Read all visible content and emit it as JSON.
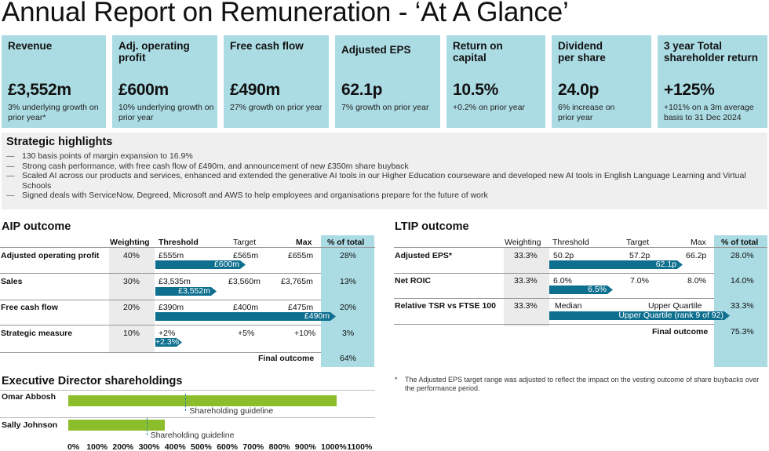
{
  "title": "Annual Report on Remuneration - ‘At A Glance’",
  "kpis": [
    {
      "label": "Revenue",
      "value": "£3,552m",
      "sub": "3% underlying growth on prior year*"
    },
    {
      "label": "Adj. operating profit",
      "value": "£600m",
      "sub": "10% underlying growth on prior year"
    },
    {
      "label": "Free cash flow",
      "value": "£490m",
      "sub": "27% growth on prior year"
    },
    {
      "label": "Adjusted EPS",
      "value": "62.1p",
      "sub": "7% growth on prior year"
    },
    {
      "label": "Return on capital",
      "value": "10.5%",
      "sub": "+0.2% on prior year"
    },
    {
      "label": "Dividend per share",
      "value": "24.0p",
      "sub": "6% increase on prior year"
    },
    {
      "label": "3 year Total shareholder return",
      "value": "+125%",
      "sub": "+101% on a 3m average basis to 31 Dec 2024"
    }
  ],
  "highlights": {
    "title": "Strategic highlights",
    "items": [
      "130 basis points of margin expansion to 16.9%",
      "Strong cash performance, with free cash flow of £490m, and announcement of new £350m share buyback",
      "Scaled AI across our products and services, enhanced and extended the generative AI tools in our Higher Education courseware and developed new AI tools in English Language Learning and Virtual Schools",
      "Signed deals with ServiceNow, Degreed, Microsoft and AWS to help employees and organisations prepare for the future of work"
    ]
  },
  "aip": {
    "title": "AIP outcome",
    "headers": {
      "weighting": "Weighting",
      "threshold": "Threshold",
      "target": "Target",
      "max": "Max",
      "pct": "% of total"
    },
    "rows": [
      {
        "label": "Adjusted operating profit",
        "weighting": "40%",
        "threshold": "£555m",
        "target": "£565m",
        "max": "£655m",
        "pct": "28%",
        "bar": "£600m",
        "fill": 0.5
      },
      {
        "label": "Sales",
        "weighting": "30%",
        "threshold": "£3,535m",
        "target": "£3,560m",
        "max": "£3,765m",
        "pct": "13%",
        "bar": "£3,552m",
        "fill": 0.34
      },
      {
        "label": "Free cash flow",
        "weighting": "20%",
        "threshold": "£390m",
        "target": "£400m",
        "max": "£475m",
        "pct": "20%",
        "bar": "£490m",
        "fill": 1.0
      },
      {
        "label": "Strategic measure",
        "weighting": "10%",
        "threshold": "+2%",
        "target": "+5%",
        "max": "+10%",
        "pct": "3%",
        "bar": "+2.3%",
        "fill": 0.14
      }
    ],
    "final_label": "Final outcome",
    "final_value": "64%"
  },
  "ltip": {
    "title": "LTIP outcome",
    "headers": {
      "weighting": "Weighting",
      "threshold": "Threshold",
      "target": "Target",
      "max": "Max",
      "pct": "% of total"
    },
    "rows": [
      {
        "label": "Adjusted EPS*",
        "weighting": "33.3%",
        "threshold": "50.2p",
        "target": "57.2p",
        "max": "66.2p",
        "pct": "28.0%",
        "bar": "62.1p",
        "fill": 0.74
      },
      {
        "label": "Net ROIC",
        "weighting": "33.3%",
        "threshold": "6.0%",
        "target": "7.0%",
        "max": "8.0%",
        "pct": "14.0%",
        "bar": "6.5%",
        "fill": 0.35
      },
      {
        "label": "Relative TSR vs FTSE 100",
        "weighting": "33.3%",
        "threshold": "Median",
        "target": "Upper Quartile",
        "max": "",
        "pct": "33.3%",
        "bar": "Upper Quartile (rank 9 of 92)",
        "fill": 1.0
      }
    ],
    "final_label": "Final outcome",
    "final_value": "75.3%"
  },
  "shareholdings": {
    "title": "Executive Director shareholdings",
    "people": [
      {
        "name": "Omar Abbosh",
        "holding_pct": 1030,
        "guideline_pct": 450,
        "guideline_label": "Shareholding guideline"
      },
      {
        "name": "Sally Johnson",
        "holding_pct": 370,
        "guideline_pct": 300,
        "guideline_label": "Shareholding guideline"
      }
    ],
    "axis_ticks": [
      "0%",
      "100%",
      "200%",
      "300%",
      "400%",
      "500%",
      "600%",
      "700%",
      "800%",
      "900%",
      "1000%",
      "1100%"
    ]
  },
  "footnote": "The Adjusted EPS target range was adjusted to reflect the impact on the vesting outcome of share buybacks over the performance period.",
  "colors": {
    "kpi_bg": "#abdbe3",
    "bar": "#0e6f8f",
    "holding_bar": "#8cbd2a",
    "highlight_bg": "#efefef"
  }
}
